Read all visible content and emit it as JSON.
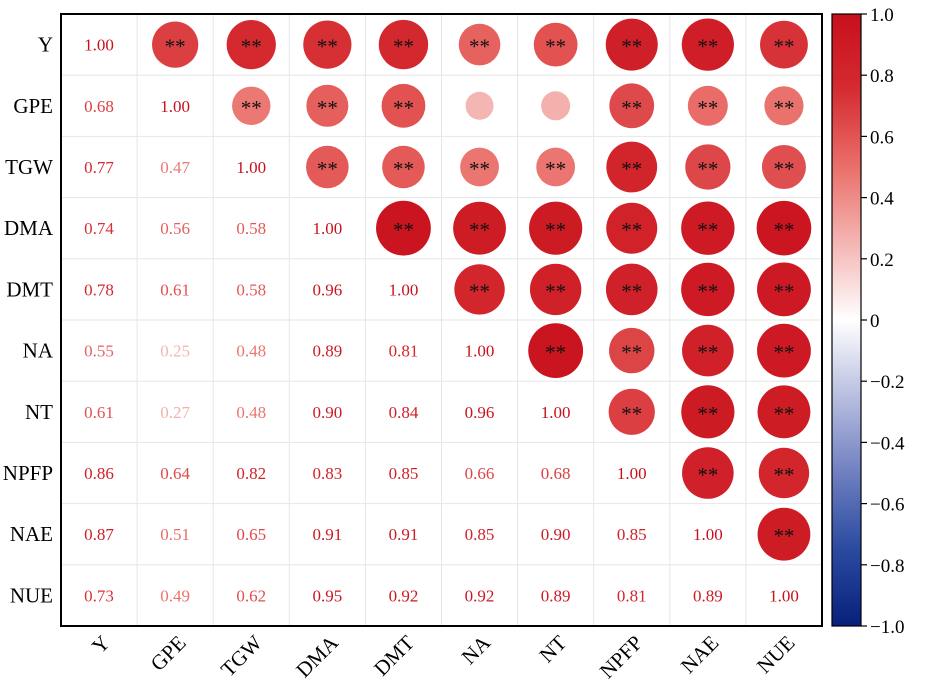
{
  "chart_data": {
    "type": "heatmap",
    "subtype": "correlation-matrix",
    "variables": [
      "Y",
      "GPE",
      "TGW",
      "DMA",
      "DMT",
      "NA",
      "NT",
      "NPFP",
      "NAE",
      "NUE"
    ],
    "lower_values": [
      [
        1.0
      ],
      [
        0.68,
        1.0
      ],
      [
        0.77,
        0.47,
        1.0
      ],
      [
        0.74,
        0.56,
        0.58,
        1.0
      ],
      [
        0.78,
        0.61,
        0.58,
        0.96,
        1.0
      ],
      [
        0.55,
        0.25,
        0.48,
        0.89,
        0.81,
        1.0
      ],
      [
        0.61,
        0.27,
        0.48,
        0.9,
        0.84,
        0.96,
        1.0
      ],
      [
        0.86,
        0.64,
        0.82,
        0.83,
        0.85,
        0.66,
        0.68,
        1.0
      ],
      [
        0.87,
        0.51,
        0.65,
        0.91,
        0.91,
        0.85,
        0.9,
        0.85,
        1.0
      ],
      [
        0.73,
        0.49,
        0.62,
        0.95,
        0.92,
        0.92,
        0.89,
        0.81,
        0.89,
        1.0
      ]
    ],
    "lower_labels": [
      [
        "1.00"
      ],
      [
        "0.68",
        "1.00"
      ],
      [
        "0.77",
        "0.47",
        "1.00"
      ],
      [
        "0.74",
        "0.56",
        "0.58",
        "1.00"
      ],
      [
        "0.78",
        "0.61",
        "0.58",
        "0.96",
        "1.00"
      ],
      [
        "0.55",
        "0.25",
        "0.48",
        "0.89",
        "0.81",
        "1.00"
      ],
      [
        "0.61",
        "0.27",
        "0.48",
        "0.90",
        "0.84",
        "0.96",
        "1.00"
      ],
      [
        "0.86",
        "0.64",
        "0.82",
        "0.83",
        "0.85",
        "0.66",
        "0.68",
        "1.00"
      ],
      [
        "0.87",
        "0.51",
        "0.65",
        "0.91",
        "0.91",
        "0.85",
        "0.90",
        "0.85",
        "1.00"
      ],
      [
        "0.73",
        "0.49",
        "0.62",
        "0.95",
        "0.92",
        "0.92",
        "0.89",
        "0.81",
        "0.89",
        "1.00"
      ]
    ],
    "significance_mark": "**",
    "non_significant_pairs": [
      [
        "GPE",
        "NA"
      ],
      [
        "GPE",
        "NT"
      ]
    ],
    "upper_display": "circles sized and colored by correlation",
    "lower_display": "numeric values colored by correlation",
    "colorbar": {
      "range": [
        -1.0,
        1.0
      ],
      "ticks": [
        -1.0,
        -0.8,
        -0.6,
        -0.4,
        -0.2,
        0,
        0.2,
        0.4,
        0.6,
        0.8,
        1.0
      ],
      "tick_labels": [
        "−1.0",
        "−0.8",
        "−0.6",
        "−0.4",
        "−0.2",
        "0",
        "0.2",
        "0.4",
        "0.6",
        "0.8",
        "1.0"
      ],
      "colors": [
        "#08207a",
        "#2a4aa0",
        "#6f7fc0",
        "#b8bedf",
        "#ffffff",
        "#f4b3b1",
        "#ea6f6a",
        "#d42a30",
        "#c8101c"
      ],
      "placement": "right"
    },
    "grid": true,
    "xlabel": "",
    "ylabel": "",
    "title": ""
  }
}
